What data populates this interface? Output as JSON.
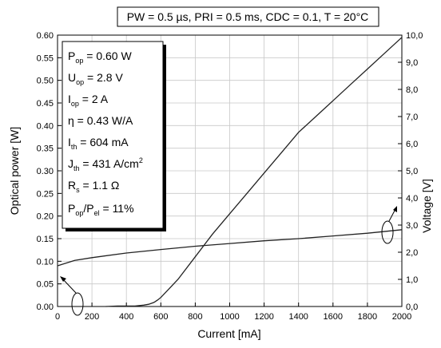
{
  "chart_data": {
    "type": "line",
    "title": "PW = 0.5 µs, PRI = 0.5 ms, CDC = 0.1, T = 20°C",
    "xlabel": "Current [mA]",
    "ylabel_left": "Optical power [W]",
    "ylabel_right": "Voltage [V]",
    "xlim": [
      0,
      2000
    ],
    "ylim_left": [
      0,
      0.6
    ],
    "ylim_right": [
      0,
      10
    ],
    "grid": true,
    "x_ticks": [
      "0",
      "200",
      "400",
      "600",
      "800",
      "1000",
      "1200",
      "1400",
      "1600",
      "1800",
      "2000"
    ],
    "y_left_ticks": [
      "0.00",
      "0.05",
      "0.10",
      "0.15",
      "0.20",
      "0.25",
      "0.30",
      "0.35",
      "0.40",
      "0.45",
      "0.50",
      "0.55",
      "0.60"
    ],
    "y_right_ticks": [
      "0,0",
      "1,0",
      "2,0",
      "3,0",
      "4,0",
      "5,0",
      "6,0",
      "7,0",
      "8,0",
      "9,0",
      "10,0"
    ],
    "series": [
      {
        "axis": "left",
        "x": [
          280,
          350,
          400,
          450,
          500,
          530,
          560,
          580,
          600,
          650,
          700,
          800,
          900,
          1000,
          1100,
          1200,
          1300,
          1400,
          1500,
          1600,
          1700,
          1800,
          1900,
          2000
        ],
        "y": [
          0.0,
          0.001,
          0.001,
          0.001,
          0.003,
          0.005,
          0.009,
          0.014,
          0.02,
          0.04,
          0.06,
          0.11,
          0.16,
          0.205,
          0.25,
          0.295,
          0.34,
          0.385,
          0.42,
          0.455,
          0.49,
          0.525,
          0.56,
          0.595
        ]
      },
      {
        "axis": "right",
        "x": [
          0,
          100,
          200,
          400,
          600,
          800,
          1000,
          1200,
          1400,
          1600,
          1800,
          2000
        ],
        "y": [
          1.5,
          1.7,
          1.8,
          1.97,
          2.1,
          2.22,
          2.32,
          2.42,
          2.5,
          2.6,
          2.7,
          2.83
        ]
      }
    ]
  },
  "info_box": {
    "pop_main": "P",
    "pop_sub": "op",
    "pop_val": " = 0.60 W",
    "uop_main": "U",
    "uop_sub": "op",
    "uop_val": " = 2.8 V",
    "iop_main": "I",
    "iop_sub": "op",
    "iop_val": " = 2 A",
    "eta": "η = 0.43 W/A",
    "ith_main": "I",
    "ith_sub": "th",
    "ith_val": " = 604 mA",
    "jth_main": "J",
    "jth_sub": "th",
    "jth_val": " = 431 A/cm",
    "jth_sup": "2",
    "rs_main": "R",
    "rs_sub": "s",
    "rs_val": " = 1.1 Ω",
    "ratio_p1": "P",
    "ratio_s1": "op",
    "ratio_p2": "/P",
    "ratio_s2": "el",
    "ratio_val": " = 11%"
  }
}
